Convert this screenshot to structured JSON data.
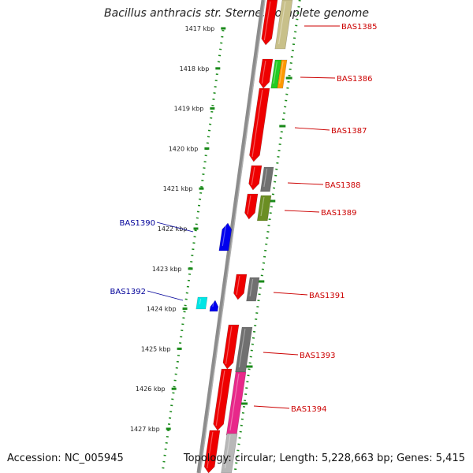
{
  "title": "Bacillus anthracis str. Sterne, complete genome",
  "footer": {
    "accession": "Accession: NC_005945",
    "summary": "Topology: circular; Length: 5,228,663 bp; Genes: 5,415"
  },
  "ruler": {
    "ticks": [
      "1417 kbp",
      "1418 kbp",
      "1419 kbp",
      "1420 kbp",
      "1421 kbp",
      "1422 kbp",
      "1423 kbp",
      "1424 kbp",
      "1425 kbp",
      "1426 kbp",
      "1427 kbp"
    ],
    "color": "#1a8a1a"
  },
  "colors": {
    "label_forward": "#cc0000",
    "label_reverse": "#000099",
    "backbone": "#8c8c8c",
    "cds_red": "#ee0000",
    "cds_blue": "#0000ee",
    "cds_cyan": "#00e5e5",
    "gray": "#707070",
    "khaki": "#c8c08a",
    "olive": "#6b8e23",
    "green": "#22cc22",
    "orange": "#ff9900",
    "magenta": "#e8288a",
    "light_gray": "#b8b8b8"
  },
  "genes": [
    {
      "label": "BAS1385",
      "strand": "forward"
    },
    {
      "label": "BAS1386",
      "strand": "forward"
    },
    {
      "label": "BAS1387",
      "strand": "forward"
    },
    {
      "label": "BAS1388",
      "strand": "forward"
    },
    {
      "label": "BAS1389",
      "strand": "forward"
    },
    {
      "label": "BAS1390",
      "strand": "reverse"
    },
    {
      "label": "BAS1391",
      "strand": "forward"
    },
    {
      "label": "BAS1392",
      "strand": "reverse"
    },
    {
      "label": "BAS1393",
      "strand": "forward"
    },
    {
      "label": "BAS1394",
      "strand": "forward"
    }
  ]
}
